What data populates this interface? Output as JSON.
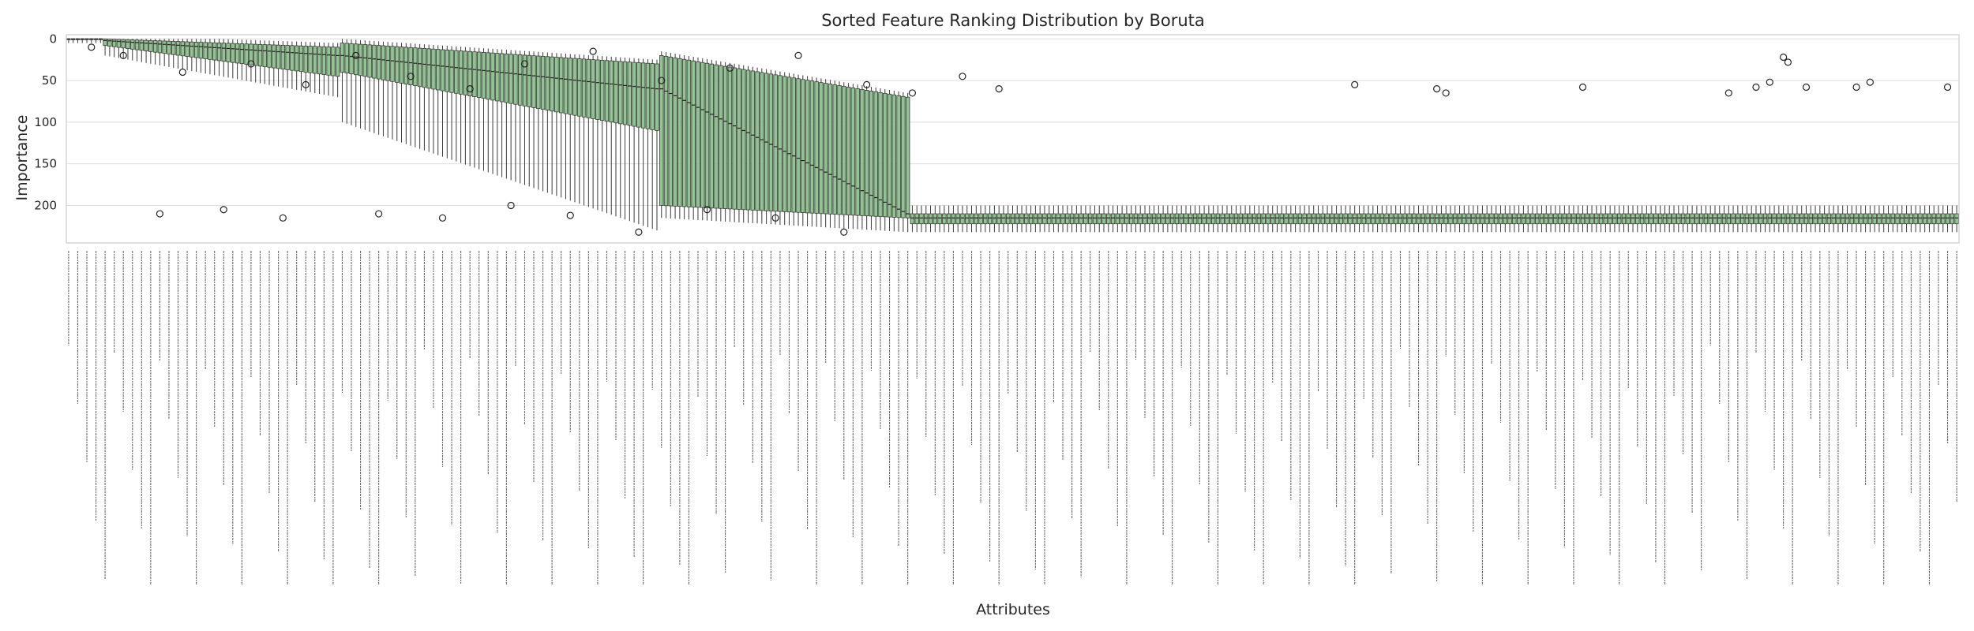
{
  "chart_data": {
    "type": "box",
    "title": "Sorted Feature Ranking Distribution by Boruta",
    "xlabel": "Attributes",
    "ylabel": "Importance",
    "y_inverted": true,
    "ylim": [
      245,
      -5
    ],
    "yticks": [
      0,
      50,
      100,
      150,
      200
    ],
    "grid": true,
    "box_color": "#90c490",
    "total_attributes": 415,
    "x_tick_labels_legible": false,
    "distribution_summary": {
      "segments": [
        {
          "attribute_index_range": [
            0,
            8
          ],
          "median": 0,
          "q1": 0,
          "q3": 1,
          "whisker_low": 0,
          "whisker_high": 5
        },
        {
          "attribute_index_range": [
            8,
            60
          ],
          "median_range": [
            2,
            20
          ],
          "q1_range": [
            0,
            10
          ],
          "q3_range": [
            8,
            45
          ],
          "whisker_high_range": [
            20,
            70
          ]
        },
        {
          "attribute_index_range": [
            60,
            130
          ],
          "median_range": [
            20,
            60
          ],
          "q1_range": [
            5,
            30
          ],
          "q3_range": [
            40,
            110
          ],
          "whisker_high_range": [
            100,
            230
          ]
        },
        {
          "attribute_index_range": [
            130,
            185
          ],
          "median_range": [
            60,
            210
          ],
          "q1_range": [
            20,
            70
          ],
          "q3_range": [
            200,
            215
          ],
          "whisker_high_range": [
            215,
            232
          ]
        },
        {
          "attribute_index_range": [
            185,
            415
          ],
          "median": 215,
          "q1": 210,
          "q3": 222,
          "whisker_low": 200,
          "whisker_high": 232
        }
      ]
    },
    "outliers": [
      {
        "x_index": 20,
        "y": 210
      },
      {
        "x_index": 34,
        "y": 205
      },
      {
        "x_index": 47,
        "y": 215
      },
      {
        "x_index": 68,
        "y": 210
      },
      {
        "x_index": 82,
        "y": 215
      },
      {
        "x_index": 97,
        "y": 200
      },
      {
        "x_index": 110,
        "y": 212
      },
      {
        "x_index": 125,
        "y": 232
      },
      {
        "x_index": 140,
        "y": 205
      },
      {
        "x_index": 155,
        "y": 215
      },
      {
        "x_index": 170,
        "y": 232
      },
      {
        "x_index": 5,
        "y": 10
      },
      {
        "x_index": 12,
        "y": 20
      },
      {
        "x_index": 25,
        "y": 40
      },
      {
        "x_index": 40,
        "y": 30
      },
      {
        "x_index": 52,
        "y": 55
      },
      {
        "x_index": 63,
        "y": 20
      },
      {
        "x_index": 75,
        "y": 45
      },
      {
        "x_index": 88,
        "y": 60
      },
      {
        "x_index": 100,
        "y": 30
      },
      {
        "x_index": 115,
        "y": 15
      },
      {
        "x_index": 130,
        "y": 50
      },
      {
        "x_index": 145,
        "y": 35
      },
      {
        "x_index": 160,
        "y": 20
      },
      {
        "x_index": 175,
        "y": 55
      },
      {
        "x_index": 185,
        "y": 65
      },
      {
        "x_index": 196,
        "y": 45
      },
      {
        "x_index": 204,
        "y": 60
      },
      {
        "x_index": 282,
        "y": 55
      },
      {
        "x_index": 300,
        "y": 60
      },
      {
        "x_index": 302,
        "y": 65
      },
      {
        "x_index": 332,
        "y": 58
      },
      {
        "x_index": 364,
        "y": 65
      },
      {
        "x_index": 370,
        "y": 58
      },
      {
        "x_index": 373,
        "y": 52
      },
      {
        "x_index": 376,
        "y": 22
      },
      {
        "x_index": 377,
        "y": 28
      },
      {
        "x_index": 381,
        "y": 58
      },
      {
        "x_index": 392,
        "y": 58
      },
      {
        "x_index": 395,
        "y": 52
      },
      {
        "x_index": 412,
        "y": 58
      }
    ]
  }
}
